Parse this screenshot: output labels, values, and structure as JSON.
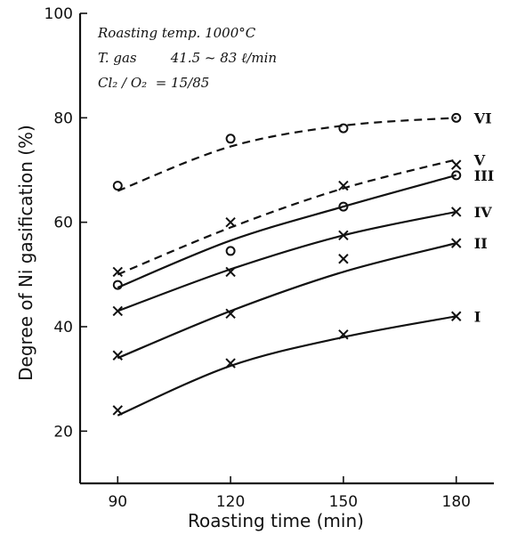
{
  "chart_data": {
    "type": "scatter",
    "title": "",
    "xlabel": "Roasting time (min)",
    "ylabel": "Degree of Ni gasification (%)",
    "xlim": [
      80,
      190
    ],
    "ylim": [
      10,
      100
    ],
    "x_ticks": [
      90,
      120,
      150,
      180
    ],
    "y_ticks": [
      20,
      40,
      60,
      80,
      100
    ],
    "grid": false,
    "annotations": [
      "Roasting temp.  1000°C",
      "T. gas        41.5 ~ 83 ℓ/min",
      "Cl₂ / O₂  = 15/85"
    ],
    "series": [
      {
        "name": "VI",
        "marker": "o",
        "line": "dashed",
        "x": [
          90,
          120,
          150,
          180
        ],
        "y": [
          67,
          76,
          78,
          80
        ],
        "curve": [
          [
            90,
            66
          ],
          [
            120,
            74.5
          ],
          [
            150,
            78.5
          ],
          [
            180,
            80
          ]
        ]
      },
      {
        "name": "V",
        "marker": "x",
        "line": "dashed",
        "x": [
          90,
          120,
          150,
          180
        ],
        "y": [
          50.5,
          60,
          67,
          71
        ],
        "curve": [
          [
            90,
            50
          ],
          [
            120,
            59
          ],
          [
            150,
            66.5
          ],
          [
            180,
            72
          ]
        ]
      },
      {
        "name": "III",
        "marker": "o",
        "line": "solid",
        "x": [
          90,
          120,
          150,
          180
        ],
        "y": [
          48,
          54.5,
          63,
          69
        ],
        "curve": [
          [
            90,
            47.5
          ],
          [
            120,
            56.5
          ],
          [
            150,
            63
          ],
          [
            180,
            69
          ]
        ]
      },
      {
        "name": "IV",
        "marker": "x",
        "line": "solid",
        "x": [
          90,
          120,
          150,
          180
        ],
        "y": [
          43,
          50.5,
          57.5,
          62
        ],
        "curve": [
          [
            90,
            43
          ],
          [
            120,
            51
          ],
          [
            150,
            57.5
          ],
          [
            180,
            62
          ]
        ]
      },
      {
        "name": "II",
        "marker": "x",
        "line": "solid",
        "x": [
          90,
          120,
          150,
          180
        ],
        "y": [
          34.5,
          42.5,
          53,
          56
        ],
        "curve": [
          [
            90,
            34
          ],
          [
            120,
            43
          ],
          [
            150,
            50.5
          ],
          [
            180,
            56
          ]
        ]
      },
      {
        "name": "I",
        "marker": "x",
        "line": "solid",
        "x": [
          90,
          120,
          150,
          180
        ],
        "y": [
          24,
          33,
          38.5,
          42
        ],
        "curve": [
          [
            90,
            23
          ],
          [
            120,
            32.5
          ],
          [
            150,
            38
          ],
          [
            180,
            42
          ]
        ]
      }
    ]
  }
}
